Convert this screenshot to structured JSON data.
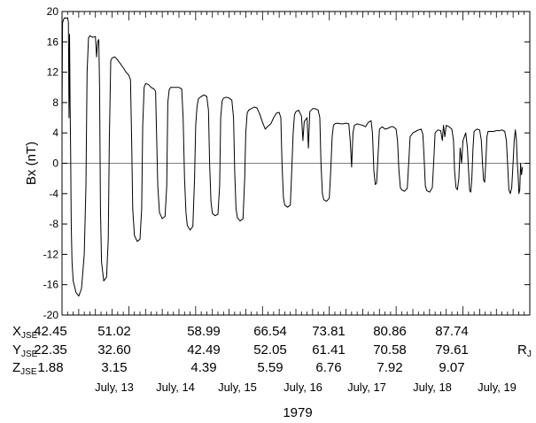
{
  "chart_data": {
    "type": "line",
    "title": "",
    "xlabel": "1979",
    "ylabel": "Bx (nT)",
    "ylim": [
      -20,
      20
    ],
    "yticks": [
      -20,
      -16,
      -12,
      -8,
      -4,
      0,
      4,
      8,
      12,
      16,
      20
    ],
    "xlim_hours": [
      0,
      168
    ],
    "grid": false,
    "zero_line": true,
    "series": [
      {
        "color": "#000000",
        "points": [
          [
            0,
            6
          ],
          [
            0.2,
            18.5
          ],
          [
            0.6,
            19
          ],
          [
            1,
            19.2
          ],
          [
            1.5,
            19.1
          ],
          [
            2,
            19.2
          ],
          [
            2.3,
            18.6
          ],
          [
            2.5,
            6
          ],
          [
            2.7,
            17
          ],
          [
            2.9,
            8
          ],
          [
            3.1,
            2
          ],
          [
            3.3,
            -8
          ],
          [
            3.6,
            -13
          ],
          [
            4,
            -15.5
          ],
          [
            5,
            -17
          ],
          [
            6,
            -17.5
          ],
          [
            7,
            -16.5
          ],
          [
            8,
            -12
          ],
          [
            8.6,
            -3
          ],
          [
            9,
            12
          ],
          [
            9.5,
            16.5
          ],
          [
            10,
            16.8
          ],
          [
            11,
            16.6
          ],
          [
            12,
            16.7
          ],
          [
            12.4,
            14
          ],
          [
            12.8,
            16
          ],
          [
            13.2,
            16.3
          ],
          [
            13.5,
            10
          ],
          [
            13.8,
            -6
          ],
          [
            14.2,
            -13
          ],
          [
            15,
            -15.5
          ],
          [
            16,
            -15
          ],
          [
            16.6,
            -10
          ],
          [
            17,
            3
          ],
          [
            17.5,
            13.5
          ],
          [
            18,
            13.9
          ],
          [
            19,
            14
          ],
          [
            20,
            13.6
          ],
          [
            22,
            12.6
          ],
          [
            23,
            12
          ],
          [
            24,
            11.6
          ],
          [
            24.6,
            11
          ],
          [
            25,
            3
          ],
          [
            25.4,
            -6
          ],
          [
            26,
            -9.5
          ],
          [
            27,
            -10.3
          ],
          [
            28,
            -10
          ],
          [
            28.6,
            -6
          ],
          [
            29,
            5
          ],
          [
            29.5,
            10
          ],
          [
            30,
            10.5
          ],
          [
            31,
            10.4
          ],
          [
            32,
            10
          ],
          [
            33,
            9.8
          ],
          [
            33.6,
            9.5
          ],
          [
            34,
            3
          ],
          [
            34.4,
            -3
          ],
          [
            35,
            -6.5
          ],
          [
            36,
            -7.3
          ],
          [
            37,
            -7
          ],
          [
            37.6,
            -3
          ],
          [
            38,
            8
          ],
          [
            38.5,
            9.7
          ],
          [
            39,
            10
          ],
          [
            40,
            10
          ],
          [
            41,
            10
          ],
          [
            42,
            10
          ],
          [
            43,
            9.8
          ],
          [
            43.5,
            6
          ],
          [
            44,
            -2
          ],
          [
            44.5,
            -6.5
          ],
          [
            45,
            -8.2
          ],
          [
            46,
            -8.8
          ],
          [
            47,
            -8.3
          ],
          [
            47.6,
            -2
          ],
          [
            48,
            5
          ],
          [
            48.5,
            7.5
          ],
          [
            49,
            8.5
          ],
          [
            50,
            8.8
          ],
          [
            51,
            9
          ],
          [
            52,
            8.8
          ],
          [
            52.6,
            7
          ],
          [
            53,
            0
          ],
          [
            53.5,
            -5
          ],
          [
            54,
            -6.6
          ],
          [
            55,
            -6.9
          ],
          [
            56,
            -6.7
          ],
          [
            56.6,
            -3
          ],
          [
            57,
            6
          ],
          [
            57.5,
            8.2
          ],
          [
            58,
            8.6
          ],
          [
            59,
            8.7
          ],
          [
            60,
            8.6
          ],
          [
            61,
            8.3
          ],
          [
            61.6,
            6
          ],
          [
            62,
            -1
          ],
          [
            62.5,
            -6
          ],
          [
            63,
            -7.2
          ],
          [
            64,
            -7.6
          ],
          [
            65,
            -7.3
          ],
          [
            65.6,
            -2
          ],
          [
            66,
            4
          ],
          [
            66.5,
            6.6
          ],
          [
            67,
            7
          ],
          [
            68,
            7.2
          ],
          [
            69,
            7.4
          ],
          [
            70,
            7.3
          ],
          [
            71,
            6.5
          ],
          [
            72,
            5.4
          ],
          [
            73,
            4.5
          ],
          [
            74,
            4.9
          ],
          [
            75,
            5.2
          ],
          [
            76,
            6
          ],
          [
            77,
            6.6
          ],
          [
            78,
            6.7
          ],
          [
            78.6,
            6
          ],
          [
            79,
            0
          ],
          [
            79.5,
            -4.5
          ],
          [
            80,
            -5.5
          ],
          [
            81,
            -5.8
          ],
          [
            82,
            -5.5
          ],
          [
            82.5,
            -1
          ],
          [
            83,
            4
          ],
          [
            83.5,
            6.4
          ],
          [
            84,
            6.8
          ],
          [
            85,
            7
          ],
          [
            86,
            6.2
          ],
          [
            86.5,
            3
          ],
          [
            87,
            5.5
          ],
          [
            88,
            6
          ],
          [
            88.5,
            2
          ],
          [
            89,
            6.8
          ],
          [
            90,
            7.2
          ],
          [
            91,
            7.2
          ],
          [
            92,
            7
          ],
          [
            92.6,
            6
          ],
          [
            93,
            0
          ],
          [
            93.5,
            -4
          ],
          [
            94,
            -4.8
          ],
          [
            95,
            -5
          ],
          [
            96,
            -4.6
          ],
          [
            96.5,
            -1
          ],
          [
            97,
            3.5
          ],
          [
            97.5,
            5
          ],
          [
            98,
            5.2
          ],
          [
            99,
            5.3
          ],
          [
            100,
            5.2
          ],
          [
            101,
            5.2
          ],
          [
            102,
            5.3
          ],
          [
            103,
            5.2
          ],
          [
            103.5,
            3
          ],
          [
            104,
            -0.5
          ],
          [
            104.5,
            4
          ],
          [
            105,
            5
          ],
          [
            106,
            5.2
          ],
          [
            107,
            5.1
          ],
          [
            108,
            5
          ],
          [
            109,
            4.8
          ],
          [
            110,
            5.4
          ],
          [
            111,
            5.6
          ],
          [
            111.5,
            4
          ],
          [
            112,
            -1
          ],
          [
            112.5,
            -2.8
          ],
          [
            113,
            -2.6
          ],
          [
            113.5,
            1
          ],
          [
            114,
            4.5
          ],
          [
            115,
            4.8
          ],
          [
            116,
            4.5
          ],
          [
            117,
            4.6
          ],
          [
            118,
            4.8
          ],
          [
            119,
            4.8
          ],
          [
            120,
            4.5
          ],
          [
            120.5,
            3
          ],
          [
            121,
            -1
          ],
          [
            121.5,
            -3.2
          ],
          [
            122,
            -3.5
          ],
          [
            123,
            -3.7
          ],
          [
            124,
            -3.3
          ],
          [
            124.5,
            0
          ],
          [
            125,
            3.5
          ],
          [
            126,
            4
          ],
          [
            127,
            4.2
          ],
          [
            128,
            4.4
          ],
          [
            129,
            4.5
          ],
          [
            129.6,
            3.8
          ],
          [
            130,
            1
          ],
          [
            130.5,
            -3
          ],
          [
            131,
            -3.6
          ],
          [
            132,
            -3.8
          ],
          [
            133,
            -3.2
          ],
          [
            133.6,
            1
          ],
          [
            134,
            4
          ],
          [
            135,
            4.4
          ],
          [
            136,
            4.3
          ],
          [
            136.6,
            3
          ],
          [
            137,
            5
          ],
          [
            137.5,
            3.5
          ],
          [
            138,
            5
          ],
          [
            139,
            4.8
          ],
          [
            140,
            4.5
          ],
          [
            140.6,
            3
          ],
          [
            141,
            -1
          ],
          [
            141.5,
            -3.2
          ],
          [
            142,
            -3.5
          ],
          [
            142.5,
            -2
          ],
          [
            143,
            2
          ],
          [
            143.5,
            0
          ],
          [
            144,
            3
          ],
          [
            145,
            4
          ],
          [
            145.6,
            2
          ],
          [
            146,
            -1
          ],
          [
            146.4,
            -3.6
          ],
          [
            146.8,
            -3.8
          ],
          [
            147.2,
            -2
          ],
          [
            147.6,
            2
          ],
          [
            148,
            4.2
          ],
          [
            149,
            4.5
          ],
          [
            150,
            4.4
          ],
          [
            150.6,
            3
          ],
          [
            151,
            0
          ],
          [
            151.4,
            -2.2
          ],
          [
            151.8,
            -2.5
          ],
          [
            152.2,
            0
          ],
          [
            152.6,
            3.5
          ],
          [
            153,
            4.2
          ],
          [
            154,
            4.2
          ],
          [
            155,
            4.2
          ],
          [
            156,
            4.3
          ],
          [
            157,
            4.3
          ],
          [
            158,
            4.4
          ],
          [
            159,
            4.2
          ],
          [
            159.6,
            3
          ],
          [
            160,
            0
          ],
          [
            160.5,
            -3.5
          ],
          [
            161,
            -4
          ],
          [
            161.5,
            -3.2
          ],
          [
            162,
            0
          ],
          [
            162.4,
            3
          ],
          [
            162.8,
            4.4
          ],
          [
            163.2,
            3
          ],
          [
            163.5,
            0
          ],
          [
            163.8,
            -1.5
          ],
          [
            164.1,
            -4
          ],
          [
            164.4,
            -3.5
          ],
          [
            164.7,
            0
          ],
          [
            165,
            -1.5
          ],
          [
            165.4,
            -0.5
          ]
        ]
      }
    ],
    "coords": {
      "x": {
        "label": "X",
        "sub": "JSE",
        "values": [
          "42.45",
          "51.02",
          "58.99",
          "66.54",
          "73.81",
          "80.86",
          "87.74"
        ]
      },
      "y": {
        "label": "Y",
        "sub": "JSE",
        "values": [
          "22.35",
          "32.60",
          "42.49",
          "52.05",
          "61.41",
          "70.58",
          "79.61"
        ]
      },
      "z": {
        "label": "Z",
        "sub": "JSE",
        "values": [
          "1.88",
          "3.15",
          "4.39",
          "5.59",
          "6.76",
          "7.92",
          "9.07"
        ]
      },
      "unit": {
        "label": "R",
        "sub": "J"
      }
    },
    "dates": [
      "July, 13",
      "July, 14",
      "July, 15",
      "July, 16",
      "July, 17",
      "July, 18",
      "July, 19"
    ]
  }
}
